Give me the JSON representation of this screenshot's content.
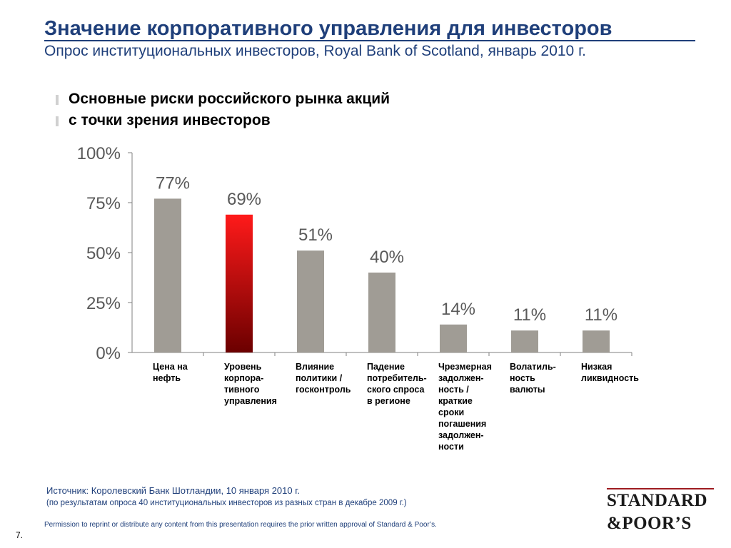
{
  "header": {
    "title": "Значение корпоративного управления для инвесторов",
    "subtitle": "Опрос институциональных инвесторов, Royal Bank of Scotland, январь 2010 г."
  },
  "chart_heading": {
    "line1": "Основные риски российского рынка акций",
    "line2": "с точки зрения инвесторов"
  },
  "colors": {
    "title": "#1f3f7a",
    "bar": "#a09c95",
    "highlight_top": "#ff1a1a",
    "highlight_bottom": "#6b0000"
  },
  "chart_data": {
    "type": "bar",
    "ylim": [
      0,
      100
    ],
    "yticks": [
      "0%",
      "25%",
      "50%",
      "75%",
      "100%"
    ],
    "grid": false,
    "highlight_index": 1,
    "categories": [
      "Цена на\nнефть",
      "Уровень\nкорпора-\nтивного\nуправления",
      "Влияние\nполитики /\nгосконтроль",
      "Падение\nпотребитель-\nского спроса\nв регионе",
      "Чрезмерная\nзадолжен-\nность /\nкраткие\nсроки\nпогашения\nзадолжен-\nности",
      "Волатиль-\nность\nвалюты",
      "Низкая\nликвидность"
    ],
    "values": [
      77,
      69,
      51,
      40,
      14,
      11,
      11
    ],
    "value_labels": [
      "77%",
      "69%",
      "51%",
      "40%",
      "14%",
      "11%",
      "11%"
    ]
  },
  "footer": {
    "source": "Источник: Королевский Банк Шотландии, 10 января 2010 г.",
    "source_note": "(по результатам опроса 40 институциональных инвесторов из разных стран в декабре 2009 г.)",
    "permission": "Permission to reprint or distribute any content from this presentation requires the prior written approval of Standard & Poor’s.",
    "page_number": "7."
  },
  "logo": {
    "line1": "STANDARD",
    "line2": "&POOR’S"
  }
}
